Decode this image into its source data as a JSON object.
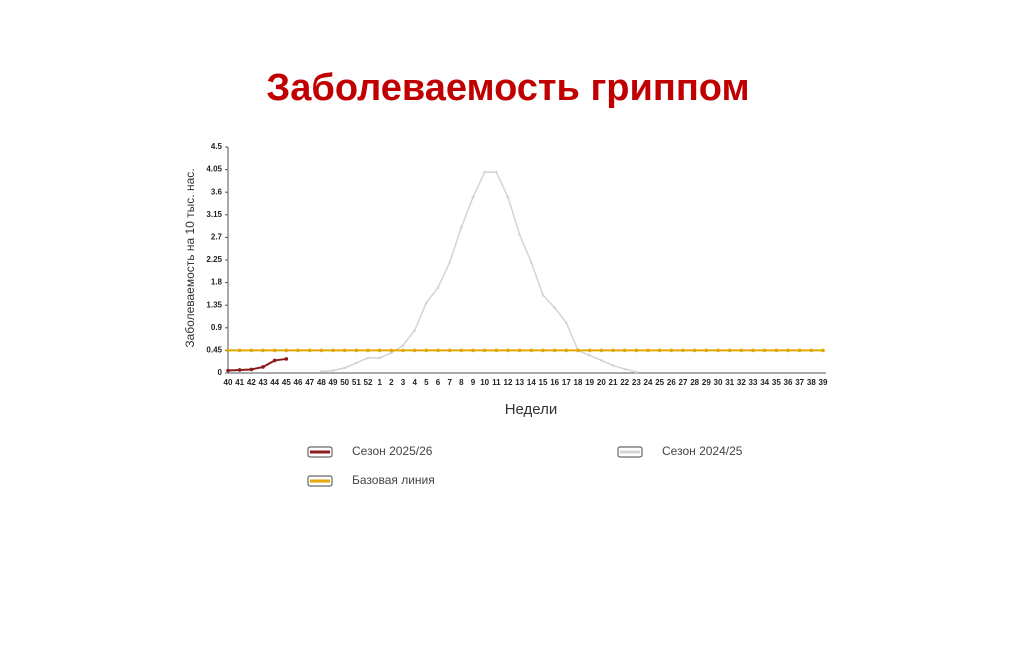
{
  "chart_data": {
    "type": "line",
    "title": "Заболеваемость гриппом",
    "ylabel": "Заболеваемость на 10 тыс. нас.",
    "xlabel": "Недели",
    "categories": [
      "40",
      "41",
      "42",
      "43",
      "44",
      "45",
      "46",
      "47",
      "48",
      "49",
      "50",
      "51",
      "52",
      "1",
      "2",
      "3",
      "4",
      "5",
      "6",
      "7",
      "8",
      "9",
      "10",
      "11",
      "12",
      "13",
      "14",
      "15",
      "16",
      "17",
      "18",
      "19",
      "20",
      "21",
      "22",
      "23",
      "24",
      "25",
      "26",
      "27",
      "28",
      "29",
      "30",
      "31",
      "32",
      "33",
      "34",
      "35",
      "36",
      "37",
      "38",
      "39"
    ],
    "ylim": [
      0,
      4.5
    ],
    "yticks": [
      0,
      0.45,
      0.9,
      1.35,
      1.8,
      2.25,
      2.7,
      3.15,
      3.6,
      4.05,
      4.5
    ],
    "series": [
      {
        "name": "Сезон 2025/26",
        "color": "#8b1a1a",
        "values": [
          0.05,
          0.06,
          0.07,
          0.12,
          0.25,
          0.28,
          null,
          null,
          null,
          null,
          null,
          null,
          null,
          null,
          null,
          null,
          null,
          null,
          null,
          null,
          null,
          null,
          null,
          null,
          null,
          null,
          null,
          null,
          null,
          null,
          null,
          null,
          null,
          null,
          null,
          null,
          null,
          null,
          null,
          null,
          null,
          null,
          null,
          null,
          null,
          null,
          null,
          null,
          null,
          null,
          null,
          null
        ]
      },
      {
        "name": "Сезон 2024/25",
        "color": "#d4d4d4",
        "values": [
          null,
          null,
          null,
          null,
          null,
          null,
          null,
          null,
          0.03,
          0.05,
          0.1,
          0.2,
          0.3,
          0.3,
          0.4,
          0.55,
          0.85,
          1.4,
          1.7,
          2.2,
          2.9,
          3.5,
          4.0,
          4.0,
          3.5,
          2.75,
          2.2,
          1.55,
          1.3,
          1.0,
          0.45,
          0.35,
          0.25,
          0.15,
          0.08,
          0.02,
          null,
          null,
          null,
          null,
          null,
          null,
          null,
          null,
          null,
          null,
          null,
          null,
          null,
          null,
          null,
          null
        ]
      },
      {
        "name": "Базовая линия",
        "color": "#e0a800",
        "values": [
          0.45,
          0.45,
          0.45,
          0.45,
          0.45,
          0.45,
          0.45,
          0.45,
          0.45,
          0.45,
          0.45,
          0.45,
          0.45,
          0.45,
          0.45,
          0.45,
          0.45,
          0.45,
          0.45,
          0.45,
          0.45,
          0.45,
          0.45,
          0.45,
          0.45,
          0.45,
          0.45,
          0.45,
          0.45,
          0.45,
          0.45,
          0.45,
          0.45,
          0.45,
          0.45,
          0.45,
          0.45,
          0.45,
          0.45,
          0.45,
          0.45,
          0.45,
          0.45,
          0.45,
          0.45,
          0.45,
          0.45,
          0.45,
          0.45,
          0.45,
          0.45,
          0.45
        ]
      }
    ]
  }
}
